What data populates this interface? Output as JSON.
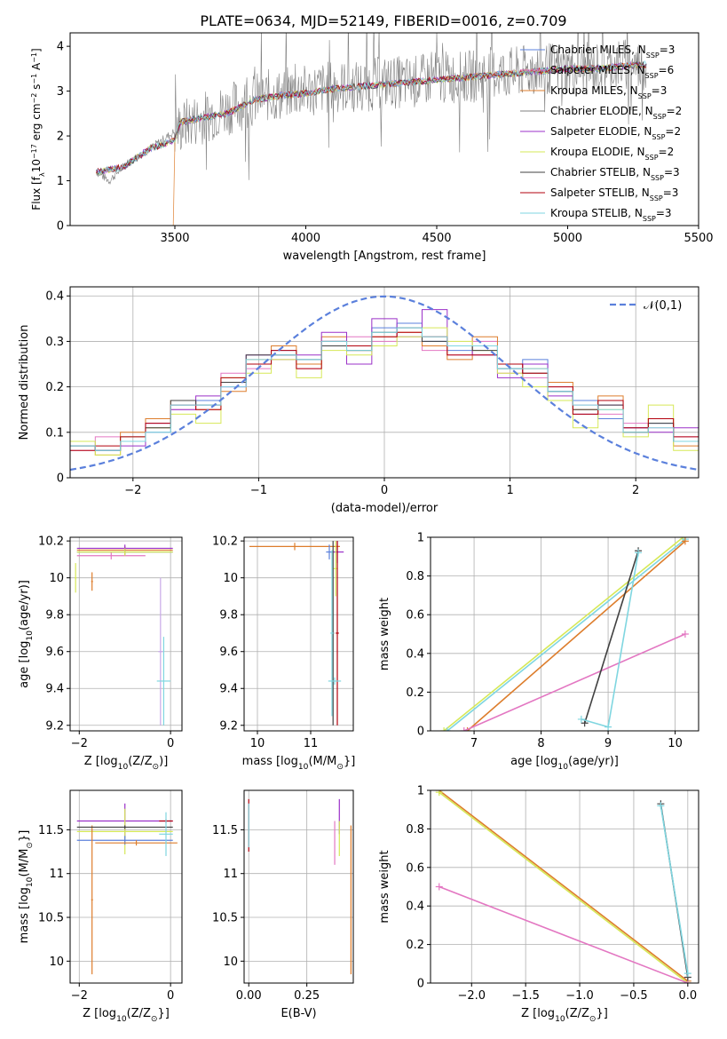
{
  "figure_title": "PLATE=0634, MJD=52149, FIBERID=0016, z=0.709",
  "legend_entries": [
    {
      "label": "Chabrier MILES, N",
      "sub": "SSP",
      "tail": "=3",
      "color": "#5b80dc"
    },
    {
      "label": "Salpeter MILES, N",
      "sub": "SSP",
      "tail": "=6",
      "color": "#e377c2"
    },
    {
      "label": "Kroupa MILES, N",
      "sub": "SSP",
      "tail": "=3",
      "color": "#dd7d2c"
    },
    {
      "label": "Chabrier ELODIE, N",
      "sub": "SSP",
      "tail": "=2",
      "color": "#7f7f7f"
    },
    {
      "label": "Salpeter ELODIE, N",
      "sub": "SSP",
      "tail": "=2",
      "color": "#9b30c8"
    },
    {
      "label": "Kroupa ELODIE, N",
      "sub": "SSP",
      "tail": "=2",
      "color": "#d6e857"
    },
    {
      "label": "Chabrier STELIB, N",
      "sub": "SSP",
      "tail": "=3",
      "color": "#404040"
    },
    {
      "label": "Salpeter STELIB, N",
      "sub": "SSP",
      "tail": "=3",
      "color": "#b3000c"
    },
    {
      "label": "Kroupa STELIB, N",
      "sub": "SSP",
      "tail": "=3",
      "color": "#7fd6e0"
    }
  ],
  "chart_data": [
    {
      "id": "spectrum",
      "type": "line",
      "xlabel": "wavelength [Angstrom, rest frame]",
      "ylabel_parts": [
        "Flux [f",
        "λ",
        "10",
        "−17",
        " erg cm",
        "−2",
        " s",
        "−1",
        " A",
        "−1",
        "]"
      ],
      "xlim": [
        3100,
        5500
      ],
      "ylim": [
        0,
        4.3
      ],
      "xticks": [
        3500,
        4000,
        4500,
        5000,
        5500
      ],
      "yticks": [
        0,
        1,
        2,
        3,
        4
      ],
      "grid": false,
      "observed": {
        "name": "data",
        "color": "#808080",
        "x": [
          3200,
          3250,
          3300,
          3350,
          3400,
          3450,
          3500,
          3550,
          3600,
          3650,
          3700,
          3750,
          3800,
          3850,
          3900,
          3950,
          4000,
          4100,
          4200,
          4300,
          4400,
          4500,
          4600,
          4700,
          4800,
          4900,
          5000,
          5100,
          5200,
          5300
        ],
        "y": [
          1.2,
          1.0,
          1.3,
          1.5,
          1.7,
          1.9,
          2.1,
          2.3,
          2.4,
          2.5,
          2.6,
          2.7,
          2.8,
          2.9,
          2.9,
          3.0,
          3.0,
          3.1,
          3.1,
          3.2,
          3.2,
          3.3,
          3.3,
          3.4,
          3.4,
          3.5,
          3.5,
          3.5,
          3.6,
          3.6
        ]
      },
      "model_x": [
        3200,
        3300,
        3400,
        3500,
        3520,
        3600,
        3700,
        3800,
        3900,
        4000,
        4100,
        4200,
        4300,
        4400,
        4500,
        4600,
        4700,
        4800,
        4900,
        5000,
        5100,
        5200,
        5300
      ],
      "model_y": [
        1.2,
        1.3,
        1.7,
        1.9,
        2.3,
        2.4,
        2.5,
        2.8,
        2.9,
        2.95,
        3.05,
        3.1,
        3.15,
        3.2,
        3.25,
        3.3,
        3.35,
        3.4,
        3.45,
        3.5,
        3.5,
        3.55,
        3.6
      ]
    },
    {
      "id": "residuals",
      "type": "step",
      "xlabel": "(data-model)/error",
      "ylabel": "Normed distribution",
      "xlim": [
        -2.5,
        2.5
      ],
      "ylim": [
        0,
        0.42
      ],
      "xticks": [
        -2,
        -1,
        0,
        1,
        2
      ],
      "yticks": [
        0,
        0.1,
        0.2,
        0.3,
        0.4
      ],
      "grid": true,
      "legend_position": "top-right",
      "reference": {
        "name": "𝒩(0,1)",
        "mu": 0,
        "sigma": 1,
        "color": "#5b80dc",
        "style": "dashed"
      },
      "bin_edges": [
        -2.5,
        -2.3,
        -2.1,
        -1.9,
        -1.7,
        -1.5,
        -1.3,
        -1.1,
        -0.9,
        -0.7,
        -0.5,
        -0.3,
        -0.1,
        0.1,
        0.3,
        0.5,
        0.7,
        0.9,
        1.1,
        1.3,
        1.5,
        1.7,
        1.9,
        2.1,
        2.3,
        2.5
      ],
      "series": [
        {
          "color": "#5b80dc",
          "values": [
            0.08,
            0.06,
            0.09,
            0.1,
            0.16,
            0.17,
            0.21,
            0.25,
            0.28,
            0.26,
            0.3,
            0.29,
            0.33,
            0.34,
            0.3,
            0.28,
            0.29,
            0.24,
            0.26,
            0.19,
            0.17,
            0.13,
            0.11,
            0.12,
            0.08
          ]
        },
        {
          "color": "#e377c2",
          "values": [
            0.06,
            0.09,
            0.08,
            0.11,
            0.15,
            0.16,
            0.23,
            0.24,
            0.27,
            0.24,
            0.29,
            0.31,
            0.3,
            0.33,
            0.28,
            0.27,
            0.3,
            0.23,
            0.22,
            0.2,
            0.16,
            0.14,
            0.12,
            0.11,
            0.09
          ]
        },
        {
          "color": "#dd7d2c",
          "values": [
            0.07,
            0.05,
            0.1,
            0.13,
            0.17,
            0.15,
            0.19,
            0.26,
            0.29,
            0.25,
            0.31,
            0.28,
            0.31,
            0.32,
            0.29,
            0.26,
            0.31,
            0.25,
            0.24,
            0.21,
            0.15,
            0.18,
            0.1,
            0.13,
            0.07
          ]
        },
        {
          "color": "#9b30c8",
          "values": [
            0.07,
            0.06,
            0.07,
            0.12,
            0.15,
            0.18,
            0.2,
            0.27,
            0.26,
            0.27,
            0.32,
            0.25,
            0.35,
            0.31,
            0.37,
            0.29,
            0.27,
            0.22,
            0.25,
            0.18,
            0.14,
            0.16,
            0.11,
            0.1,
            0.11
          ]
        },
        {
          "color": "#d6e857",
          "values": [
            0.08,
            0.05,
            0.09,
            0.11,
            0.14,
            0.12,
            0.22,
            0.23,
            0.26,
            0.22,
            0.28,
            0.27,
            0.29,
            0.31,
            0.33,
            0.3,
            0.28,
            0.23,
            0.2,
            0.17,
            0.11,
            0.15,
            0.09,
            0.16,
            0.06
          ]
        },
        {
          "color": "#404040",
          "values": [
            0.07,
            0.06,
            0.08,
            0.11,
            0.17,
            0.16,
            0.21,
            0.27,
            0.27,
            0.26,
            0.29,
            0.28,
            0.32,
            0.33,
            0.3,
            0.29,
            0.28,
            0.24,
            0.23,
            0.19,
            0.15,
            0.16,
            0.1,
            0.12,
            0.08
          ]
        },
        {
          "color": "#b3000c",
          "values": [
            0.06,
            0.07,
            0.09,
            0.12,
            0.16,
            0.15,
            0.22,
            0.25,
            0.28,
            0.24,
            0.3,
            0.29,
            0.31,
            0.32,
            0.31,
            0.27,
            0.27,
            0.25,
            0.23,
            0.2,
            0.14,
            0.17,
            0.11,
            0.13,
            0.09
          ]
        },
        {
          "color": "#7fd6e0",
          "values": [
            0.07,
            0.06,
            0.08,
            0.1,
            0.16,
            0.16,
            0.2,
            0.26,
            0.27,
            0.26,
            0.3,
            0.28,
            0.32,
            0.33,
            0.31,
            0.29,
            0.29,
            0.24,
            0.24,
            0.19,
            0.16,
            0.15,
            0.1,
            0.11,
            0.08
          ]
        }
      ]
    },
    {
      "id": "age_vs_Z",
      "type": "errorbar",
      "xlabel": [
        "Z [log",
        "10",
        "(Z/Z",
        "⊙",
        ")]"
      ],
      "ylabel": [
        "age  [log",
        "10",
        "(age/yr)]"
      ],
      "xlim": [
        -2.2,
        0.25
      ],
      "ylim": [
        9.17,
        10.22
      ],
      "xticks": [
        -2,
        0
      ],
      "yticks": [
        9.2,
        9.4,
        9.6,
        9.8,
        10.0,
        10.2
      ],
      "grid": true,
      "points": [
        {
          "x": -1.0,
          "xerr": 1.05,
          "y": 10.14,
          "yerr": 0.02,
          "color": "#5b80dc"
        },
        {
          "x": -1.3,
          "xerr": 0.75,
          "y": 10.12,
          "yerr": 0.02,
          "color": "#e377c2"
        },
        {
          "x": -1.0,
          "xerr": 1.05,
          "y": 10.15,
          "yerr": 0.02,
          "color": "#dd7d2c"
        },
        {
          "x": -1.0,
          "xerr": 1.05,
          "y": 10.16,
          "yerr": 0.02,
          "color": "#9b30c8"
        },
        {
          "x": -1.0,
          "xerr": 1.05,
          "y": 10.14,
          "yerr": 0.02,
          "color": "#d6e857"
        },
        {
          "x": -0.22,
          "xerr": 0.05,
          "y": 9.6,
          "yerr": 0.4,
          "color": "#c8a8e8"
        },
        {
          "x": -0.15,
          "xerr": 0.15,
          "y": 9.44,
          "yerr": 0.24,
          "color": "#7fd6e0"
        },
        {
          "x": -1.72,
          "xerr": 0.02,
          "y": 9.98,
          "yerr": 0.05,
          "color": "#dd7d2c"
        },
        {
          "x": -2.08,
          "xerr": 0.02,
          "y": 10.0,
          "yerr": 0.08,
          "color": "#d6e857"
        }
      ]
    },
    {
      "id": "age_vs_mass",
      "type": "errorbar",
      "xlabel": [
        "mass [log",
        "10",
        "(M/M",
        "⊙",
        "}]"
      ],
      "ylabel": "",
      "xlim": [
        9.75,
        11.8
      ],
      "ylim": [
        9.17,
        10.22
      ],
      "xticks": [
        10,
        11
      ],
      "yticks": [
        9.2,
        9.4,
        9.6,
        9.8,
        10.0,
        10.2
      ],
      "grid": true,
      "points": [
        {
          "x": 10.7,
          "xerr": 0.85,
          "y": 10.17,
          "yerr": 0.02,
          "color": "#dd7d2c"
        },
        {
          "x": 11.5,
          "xerr": 0.12,
          "y": 10.14,
          "yerr": 0.06,
          "color": "#9b30c8"
        },
        {
          "x": 11.35,
          "xerr": 0.06,
          "y": 10.14,
          "yerr": 0.04,
          "color": "#5b80dc"
        },
        {
          "x": 11.47,
          "xerr": 0.04,
          "y": 10.05,
          "yerr": 0.15,
          "color": "#d6e857"
        },
        {
          "x": 11.5,
          "xerr": 0.03,
          "y": 9.7,
          "yerr": 0.5,
          "color": "#b3000c"
        },
        {
          "x": 11.42,
          "xerr": 0.02,
          "y": 9.7,
          "yerr": 0.5,
          "color": "#404040"
        },
        {
          "x": 11.45,
          "xerr": 0.12,
          "y": 9.44,
          "yerr": 0.02,
          "color": "#7fd6e0"
        },
        {
          "x": 11.4,
          "xerr": 0.03,
          "y": 9.7,
          "yerr": 0.45,
          "color": "#7fd6e0"
        }
      ]
    },
    {
      "id": "weight_vs_age",
      "type": "line",
      "xlabel": [
        "age  [log",
        "10",
        "(age/yr)]"
      ],
      "ylabel": "mass weight",
      "xlim": [
        6.35,
        10.35
      ],
      "ylim": [
        0,
        1.0
      ],
      "xticks": [
        7,
        8,
        9,
        10
      ],
      "yticks": [
        0.0,
        0.2,
        0.4,
        0.6,
        0.8,
        1.0
      ],
      "grid": true,
      "series": [
        {
          "color": "#d6e857",
          "x": [
            6.55,
            10.12
          ],
          "y": [
            0.0,
            1.0
          ]
        },
        {
          "color": "#7fd6e0",
          "x": [
            6.6,
            10.15
          ],
          "y": [
            0.0,
            0.99
          ]
        },
        {
          "color": "#dd7d2c",
          "x": [
            6.9,
            10.15
          ],
          "y": [
            0.0,
            0.98
          ]
        },
        {
          "color": "#e377c2",
          "x": [
            6.85,
            10.15
          ],
          "y": [
            0.0,
            0.5
          ]
        },
        {
          "color": "#404040",
          "x": [
            8.65,
            9.45
          ],
          "y": [
            0.04,
            0.93
          ]
        },
        {
          "color": "#7fd6e0",
          "x": [
            8.6,
            9.0,
            9.45
          ],
          "y": [
            0.06,
            0.02,
            0.92
          ]
        }
      ]
    },
    {
      "id": "mass_vs_Z",
      "type": "errorbar",
      "xlabel": [
        "Z [log",
        "10",
        "(Z/Z",
        "⊙",
        "}]"
      ],
      "ylabel": [
        "mass [log",
        "10",
        "(M/M",
        "⊙",
        "}]"
      ],
      "xlim": [
        -2.2,
        0.25
      ],
      "ylim": [
        9.75,
        11.95
      ],
      "xticks": [
        -2,
        0
      ],
      "yticks": [
        10.0,
        10.5,
        11.0,
        11.5
      ],
      "grid": true,
      "points": [
        {
          "x": -1.0,
          "xerr": 1.05,
          "y": 11.6,
          "yerr": 0.2,
          "color": "#9b30c8"
        },
        {
          "x": -1.0,
          "xerr": 1.05,
          "y": 11.48,
          "yerr": 0.26,
          "color": "#d6e857"
        },
        {
          "x": -1.0,
          "xerr": 1.05,
          "y": 11.38,
          "yerr": 0.05,
          "color": "#5b80dc"
        },
        {
          "x": -0.75,
          "xerr": 0.9,
          "y": 11.35,
          "yerr": 0.03,
          "color": "#dd7d2c"
        },
        {
          "x": -1.72,
          "xerr": 0.02,
          "y": 10.7,
          "yerr": 0.85,
          "color": "#dd7d2c"
        },
        {
          "x": -1.0,
          "xerr": 1.05,
          "y": 11.53,
          "yerr": 0.02,
          "color": "#404040"
        },
        {
          "x": -0.1,
          "xerr": 0.15,
          "y": 11.6,
          "yerr": 0.02,
          "color": "#b3000c"
        },
        {
          "x": -0.1,
          "xerr": 0.15,
          "y": 11.45,
          "yerr": 0.25,
          "color": "#7fd6e0"
        }
      ]
    },
    {
      "id": "mass_vs_ebv",
      "type": "errorbar",
      "xlabel": "E(B-V)",
      "ylabel": "",
      "xlim": [
        -0.02,
        0.45
      ],
      "ylim": [
        9.75,
        11.95
      ],
      "xticks": [
        0.0,
        0.25
      ],
      "xtick_labels": [
        "0.00",
        "0.25"
      ],
      "yticks": [
        10.0,
        10.5,
        11.0,
        11.5
      ],
      "grid": true,
      "points": [
        {
          "x": 0.0,
          "xerr": 0.0,
          "y": 11.55,
          "yerr": 0.3,
          "color": "#b3000c"
        },
        {
          "x": 0.0,
          "xerr": 0.0,
          "y": 11.55,
          "yerr": 0.25,
          "color": "#7fd6e0"
        },
        {
          "x": 0.37,
          "xerr": 0.0,
          "y": 11.35,
          "yerr": 0.25,
          "color": "#e377c2"
        },
        {
          "x": 0.39,
          "xerr": 0.0,
          "y": 11.65,
          "yerr": 0.2,
          "color": "#9b30c8"
        },
        {
          "x": 0.39,
          "xerr": 0.0,
          "y": 11.4,
          "yerr": 0.2,
          "color": "#d6e857"
        },
        {
          "x": 0.44,
          "xerr": 0.0,
          "y": 10.7,
          "yerr": 0.85,
          "color": "#dd7d2c"
        }
      ]
    },
    {
      "id": "weight_vs_Z",
      "type": "line",
      "xlabel": [
        "Z [log",
        "10",
        "(Z/Z",
        "⊙",
        "}]"
      ],
      "ylabel": "mass weight",
      "xlim": [
        -2.38,
        0.1
      ],
      "ylim": [
        0,
        1.0
      ],
      "xticks": [
        -2.0,
        -1.5,
        -1.0,
        -0.5,
        0.0
      ],
      "xtick_labels": [
        "−2.0",
        "−1.5",
        "−1.0",
        "−0.5",
        "0.0"
      ],
      "yticks": [
        0.0,
        0.2,
        0.4,
        0.6,
        0.8,
        1.0
      ],
      "grid": true,
      "series": [
        {
          "color": "#dd7d2c",
          "x": [
            -2.3,
            0.0
          ],
          "y": [
            1.0,
            0.01
          ]
        },
        {
          "color": "#d6e857",
          "x": [
            -2.3,
            0.0
          ],
          "y": [
            0.99,
            0.0
          ]
        },
        {
          "color": "#e377c2",
          "x": [
            -2.3,
            0.0
          ],
          "y": [
            0.5,
            0.0
          ]
        },
        {
          "color": "#404040",
          "x": [
            -0.25,
            0.0
          ],
          "y": [
            0.93,
            0.03
          ]
        },
        {
          "color": "#7fd6e0",
          "x": [
            -0.25,
            0.0
          ],
          "y": [
            0.92,
            0.05
          ]
        }
      ]
    }
  ]
}
